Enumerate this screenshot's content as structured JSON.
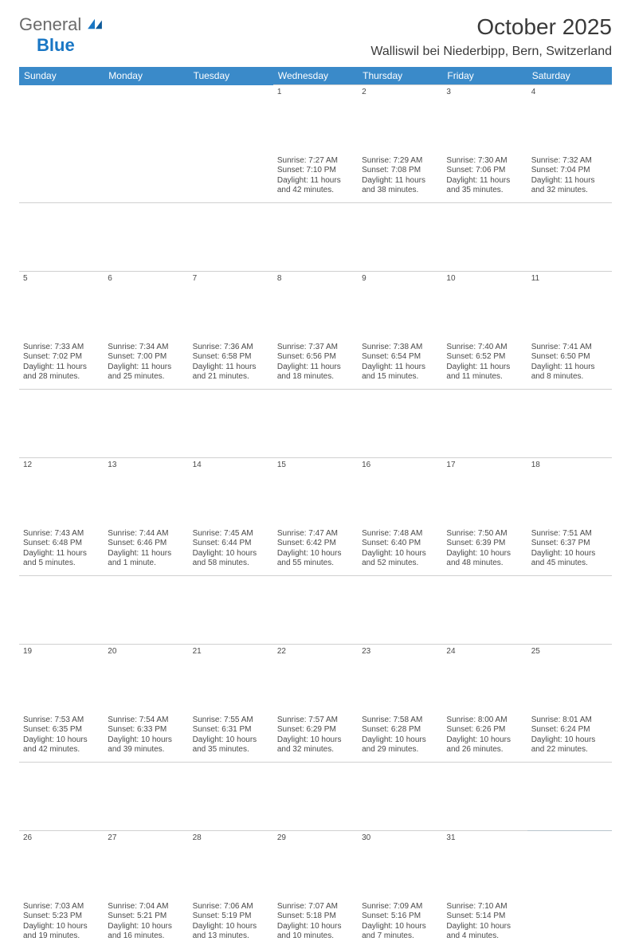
{
  "logo": {
    "text1": "General",
    "text2": "Blue"
  },
  "title": "October 2025",
  "location": "Walliswil bei Niederbipp, Bern, Switzerland",
  "colors": {
    "header_bg": "#3a8ac9",
    "header_text": "#ffffff",
    "daynum_bg": "#eef0f1",
    "week_sep": "#3a8ac9",
    "text": "#4a4a4a",
    "logo_gray": "#6b6b6b",
    "logo_blue": "#1976c4"
  },
  "day_headers": [
    "Sunday",
    "Monday",
    "Tuesday",
    "Wednesday",
    "Thursday",
    "Friday",
    "Saturday"
  ],
  "weeks": [
    [
      {
        "n": "",
        "body": ""
      },
      {
        "n": "",
        "body": ""
      },
      {
        "n": "",
        "body": ""
      },
      {
        "n": "1",
        "body": "Sunrise: 7:27 AM\nSunset: 7:10 PM\nDaylight: 11 hours and 42 minutes."
      },
      {
        "n": "2",
        "body": "Sunrise: 7:29 AM\nSunset: 7:08 PM\nDaylight: 11 hours and 38 minutes."
      },
      {
        "n": "3",
        "body": "Sunrise: 7:30 AM\nSunset: 7:06 PM\nDaylight: 11 hours and 35 minutes."
      },
      {
        "n": "4",
        "body": "Sunrise: 7:32 AM\nSunset: 7:04 PM\nDaylight: 11 hours and 32 minutes."
      }
    ],
    [
      {
        "n": "5",
        "body": "Sunrise: 7:33 AM\nSunset: 7:02 PM\nDaylight: 11 hours and 28 minutes."
      },
      {
        "n": "6",
        "body": "Sunrise: 7:34 AM\nSunset: 7:00 PM\nDaylight: 11 hours and 25 minutes."
      },
      {
        "n": "7",
        "body": "Sunrise: 7:36 AM\nSunset: 6:58 PM\nDaylight: 11 hours and 21 minutes."
      },
      {
        "n": "8",
        "body": "Sunrise: 7:37 AM\nSunset: 6:56 PM\nDaylight: 11 hours and 18 minutes."
      },
      {
        "n": "9",
        "body": "Sunrise: 7:38 AM\nSunset: 6:54 PM\nDaylight: 11 hours and 15 minutes."
      },
      {
        "n": "10",
        "body": "Sunrise: 7:40 AM\nSunset: 6:52 PM\nDaylight: 11 hours and 11 minutes."
      },
      {
        "n": "11",
        "body": "Sunrise: 7:41 AM\nSunset: 6:50 PM\nDaylight: 11 hours and 8 minutes."
      }
    ],
    [
      {
        "n": "12",
        "body": "Sunrise: 7:43 AM\nSunset: 6:48 PM\nDaylight: 11 hours and 5 minutes."
      },
      {
        "n": "13",
        "body": "Sunrise: 7:44 AM\nSunset: 6:46 PM\nDaylight: 11 hours and 1 minute."
      },
      {
        "n": "14",
        "body": "Sunrise: 7:45 AM\nSunset: 6:44 PM\nDaylight: 10 hours and 58 minutes."
      },
      {
        "n": "15",
        "body": "Sunrise: 7:47 AM\nSunset: 6:42 PM\nDaylight: 10 hours and 55 minutes."
      },
      {
        "n": "16",
        "body": "Sunrise: 7:48 AM\nSunset: 6:40 PM\nDaylight: 10 hours and 52 minutes."
      },
      {
        "n": "17",
        "body": "Sunrise: 7:50 AM\nSunset: 6:39 PM\nDaylight: 10 hours and 48 minutes."
      },
      {
        "n": "18",
        "body": "Sunrise: 7:51 AM\nSunset: 6:37 PM\nDaylight: 10 hours and 45 minutes."
      }
    ],
    [
      {
        "n": "19",
        "body": "Sunrise: 7:53 AM\nSunset: 6:35 PM\nDaylight: 10 hours and 42 minutes."
      },
      {
        "n": "20",
        "body": "Sunrise: 7:54 AM\nSunset: 6:33 PM\nDaylight: 10 hours and 39 minutes."
      },
      {
        "n": "21",
        "body": "Sunrise: 7:55 AM\nSunset: 6:31 PM\nDaylight: 10 hours and 35 minutes."
      },
      {
        "n": "22",
        "body": "Sunrise: 7:57 AM\nSunset: 6:29 PM\nDaylight: 10 hours and 32 minutes."
      },
      {
        "n": "23",
        "body": "Sunrise: 7:58 AM\nSunset: 6:28 PM\nDaylight: 10 hours and 29 minutes."
      },
      {
        "n": "24",
        "body": "Sunrise: 8:00 AM\nSunset: 6:26 PM\nDaylight: 10 hours and 26 minutes."
      },
      {
        "n": "25",
        "body": "Sunrise: 8:01 AM\nSunset: 6:24 PM\nDaylight: 10 hours and 22 minutes."
      }
    ],
    [
      {
        "n": "26",
        "body": "Sunrise: 7:03 AM\nSunset: 5:23 PM\nDaylight: 10 hours and 19 minutes."
      },
      {
        "n": "27",
        "body": "Sunrise: 7:04 AM\nSunset: 5:21 PM\nDaylight: 10 hours and 16 minutes."
      },
      {
        "n": "28",
        "body": "Sunrise: 7:06 AM\nSunset: 5:19 PM\nDaylight: 10 hours and 13 minutes."
      },
      {
        "n": "29",
        "body": "Sunrise: 7:07 AM\nSunset: 5:18 PM\nDaylight: 10 hours and 10 minutes."
      },
      {
        "n": "30",
        "body": "Sunrise: 7:09 AM\nSunset: 5:16 PM\nDaylight: 10 hours and 7 minutes."
      },
      {
        "n": "31",
        "body": "Sunrise: 7:10 AM\nSunset: 5:14 PM\nDaylight: 10 hours and 4 minutes."
      },
      {
        "n": "",
        "body": ""
      }
    ]
  ]
}
